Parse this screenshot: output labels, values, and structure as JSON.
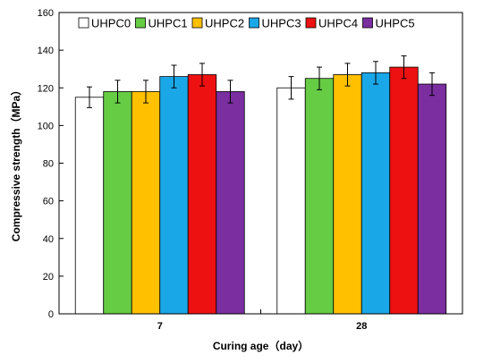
{
  "chart_data": {
    "type": "bar",
    "categories": [
      "7",
      "28"
    ],
    "series": [
      {
        "name": "UHPC0",
        "color": "#ffffff",
        "values": [
          115,
          120
        ],
        "errors": [
          5.5,
          6
        ]
      },
      {
        "name": "UHPC1",
        "color": "#66cc44",
        "values": [
          118,
          125
        ],
        "errors": [
          6,
          6
        ]
      },
      {
        "name": "UHPC2",
        "color": "#ffc000",
        "values": [
          118,
          127
        ],
        "errors": [
          6,
          6
        ]
      },
      {
        "name": "UHPC3",
        "color": "#1aa7e8",
        "values": [
          126,
          128
        ],
        "errors": [
          6,
          6
        ]
      },
      {
        "name": "UHPC4",
        "color": "#ee1111",
        "values": [
          127,
          131
        ],
        "errors": [
          6,
          6
        ]
      },
      {
        "name": "UHPC5",
        "color": "#7a2ea0",
        "values": [
          118,
          122
        ],
        "errors": [
          6,
          6
        ]
      }
    ],
    "xlabel": "Curing age（day）",
    "ylabel": "Compressive strength（MPa）",
    "ylim": [
      0,
      160
    ],
    "yticks": [
      0,
      20,
      40,
      60,
      80,
      100,
      120,
      140,
      160
    ],
    "grid": false,
    "legend_position": "top"
  }
}
